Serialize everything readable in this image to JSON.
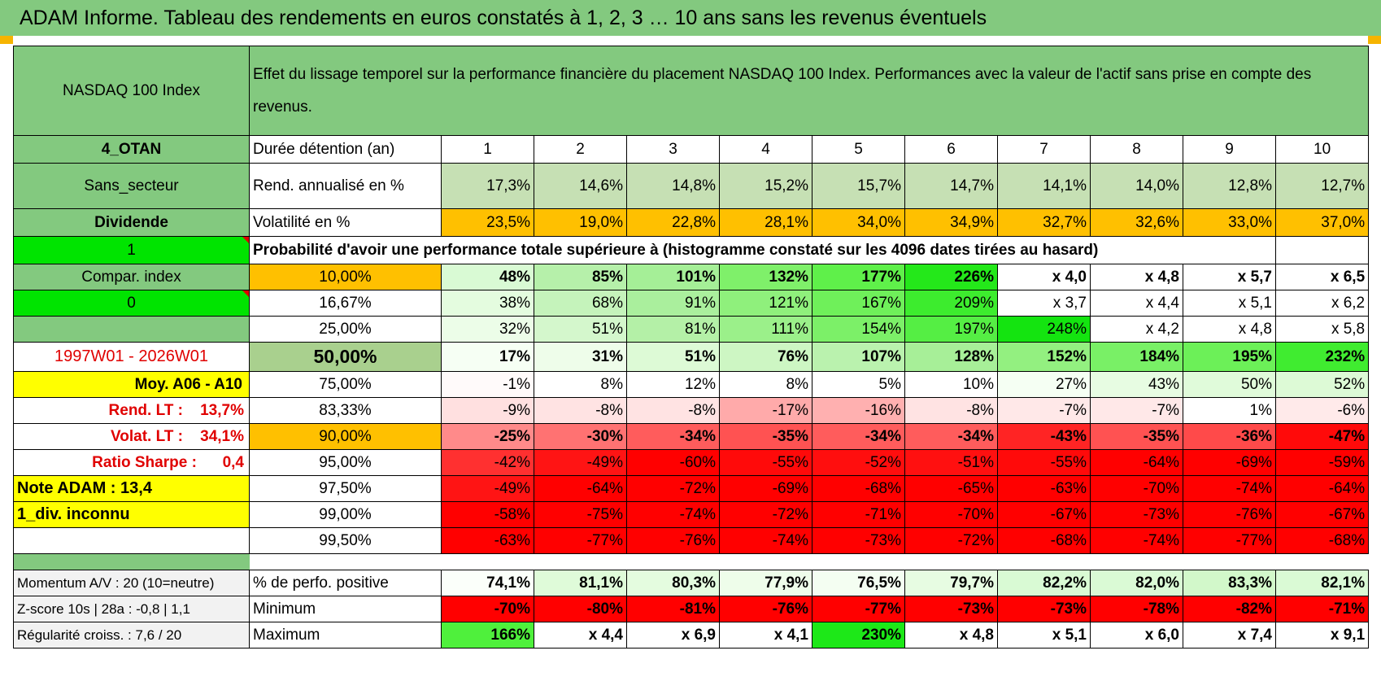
{
  "title": "ADAM Informe. Tableau des rendements en euros constatés à 1, 2, 3 … 10 ans sans les revenus éventuels",
  "header": {
    "index_name": "NASDAQ 100 Index",
    "description": "Effet du lissage temporel sur la performance financière du placement NASDAQ 100 Index. Performances avec la valeur de l'actif sans prise en compte des revenus."
  },
  "rows": {
    "duree": {
      "left": "4_OTAN",
      "label": "Durée détention (an)",
      "values": [
        "1",
        "2",
        "3",
        "4",
        "5",
        "6",
        "7",
        "8",
        "9",
        "10"
      ]
    },
    "rend": {
      "left": "Sans_secteur",
      "label": "Rend. annualisé en %",
      "values": [
        "17,3%",
        "14,6%",
        "14,8%",
        "15,2%",
        "15,7%",
        "14,7%",
        "14,1%",
        "14,0%",
        "12,8%",
        "12,7%"
      ]
    },
    "vol": {
      "left": "Dividende",
      "label": "Volatilité en %",
      "values": [
        "23,5%",
        "19,0%",
        "22,8%",
        "28,1%",
        "34,0%",
        "34,9%",
        "32,7%",
        "32,6%",
        "33,0%",
        "37,0%"
      ]
    },
    "prob_header": {
      "left": "1",
      "label": "Probabilité d'avoir une performance totale supérieure à (histogramme constaté sur les 4096 dates tirées au hasard)"
    },
    "quantiles": [
      {
        "left": "Compar. index",
        "q": "10,00%",
        "values": [
          "48%",
          "85%",
          "101%",
          "132%",
          "177%",
          "226%",
          "x 4,0",
          "x 4,8",
          "x 5,7",
          "x 6,5"
        ]
      },
      {
        "left": "0",
        "q": "16,67%",
        "values": [
          "38%",
          "68%",
          "91%",
          "121%",
          "167%",
          "209%",
          "x 3,7",
          "x 4,4",
          "x 5,1",
          "x 6,2"
        ]
      },
      {
        "left": "",
        "q": "25,00%",
        "values": [
          "32%",
          "51%",
          "81%",
          "111%",
          "154%",
          "197%",
          "248%",
          "x 4,2",
          "x 4,8",
          "x 5,8"
        ]
      },
      {
        "left": "1997W01 - 2026W01",
        "q": "50,00%",
        "values": [
          "17%",
          "31%",
          "51%",
          "76%",
          "107%",
          "128%",
          "152%",
          "184%",
          "195%",
          "232%"
        ]
      },
      {
        "left": "Moy. A06 - A10",
        "q": "75,00%",
        "values": [
          "-1%",
          "8%",
          "12%",
          "8%",
          "5%",
          "10%",
          "27%",
          "43%",
          "50%",
          "52%"
        ]
      },
      {
        "left": "Rend. LT :    13,7%",
        "q": "83,33%",
        "values": [
          "-9%",
          "-8%",
          "-8%",
          "-17%",
          "-16%",
          "-8%",
          "-7%",
          "-7%",
          "1%",
          "-6%"
        ]
      },
      {
        "left": "Volat. LT :    34,1%",
        "q": "90,00%",
        "values": [
          "-25%",
          "-30%",
          "-34%",
          "-35%",
          "-34%",
          "-34%",
          "-43%",
          "-35%",
          "-36%",
          "-47%"
        ]
      },
      {
        "left": "Ratio Sharpe :      0,4",
        "q": "95,00%",
        "values": [
          "-42%",
          "-49%",
          "-60%",
          "-55%",
          "-52%",
          "-51%",
          "-55%",
          "-64%",
          "-69%",
          "-59%"
        ]
      },
      {
        "left": "Note ADAM : 13,4",
        "q": "97,50%",
        "values": [
          "-49%",
          "-64%",
          "-72%",
          "-69%",
          "-68%",
          "-65%",
          "-63%",
          "-70%",
          "-74%",
          "-64%"
        ]
      },
      {
        "left": "1_div. inconnu",
        "q": "99,00%",
        "values": [
          "-58%",
          "-75%",
          "-74%",
          "-72%",
          "-71%",
          "-70%",
          "-67%",
          "-73%",
          "-76%",
          "-67%"
        ]
      },
      {
        "left": "",
        "q": "99,50%",
        "values": [
          "-63%",
          "-77%",
          "-76%",
          "-74%",
          "-73%",
          "-72%",
          "-68%",
          "-74%",
          "-77%",
          "-68%"
        ]
      }
    ],
    "positive": {
      "left": "Momentum A/V : 20 (10=neutre)",
      "label": "% de perfo. positive",
      "values": [
        "74,1%",
        "81,1%",
        "80,3%",
        "77,9%",
        "76,5%",
        "79,7%",
        "82,2%",
        "82,0%",
        "83,3%",
        "82,1%"
      ]
    },
    "minimum": {
      "left": "Z-score 10s | 28a : -0,8 | 1,1",
      "label": "Minimum",
      "values": [
        "-70%",
        "-80%",
        "-81%",
        "-76%",
        "-77%",
        "-73%",
        "-73%",
        "-78%",
        "-82%",
        "-71%"
      ]
    },
    "maximum": {
      "left": "Régularité croiss. : 7,6 / 20",
      "label": "Maximum",
      "values": [
        "166%",
        "x 4,4",
        "x 6,9",
        "x 4,1",
        "230%",
        "x 4,8",
        "x 5,1",
        "x 6,0",
        "x 7,4",
        "x 9,1"
      ]
    }
  },
  "colors": {
    "header_green": "#83c97f",
    "light_green": "#a9d08e",
    "pale_green": "#c6e0b4",
    "bright_green": "#00e400",
    "orange": "#ffc000",
    "yellow": "#ffff00",
    "red": "#ff0000"
  }
}
